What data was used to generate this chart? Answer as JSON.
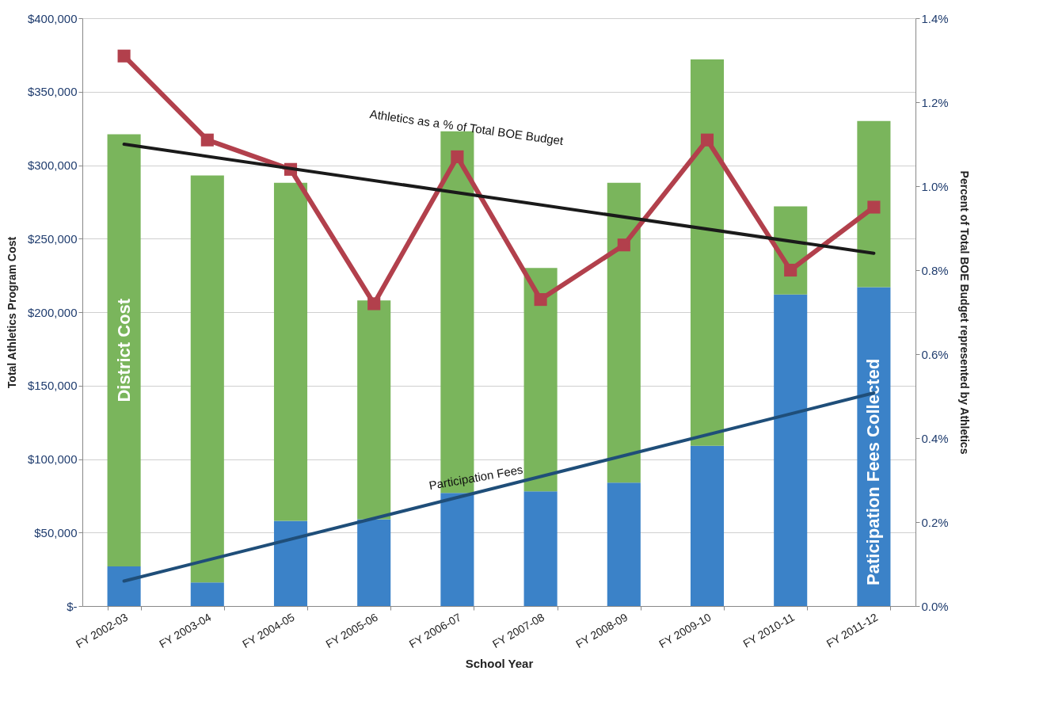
{
  "chart_data": {
    "type": "bar",
    "xlabel": "School Year",
    "ylabel": "Total Athletics Program Cost",
    "y2label": "Percent of Total BOE Budget represented by Athletics",
    "categories": [
      "FY 2002-03",
      "FY 2003-04",
      "FY 2004-05",
      "FY 2005-06",
      "FY 2006-07",
      "FY 2007-08",
      "FY 2008-09",
      "FY 2009-10",
      "FY 2010-11",
      "FY 2011-12"
    ],
    "stacked": true,
    "grid": "y",
    "legend": false,
    "series": [
      {
        "name": "Paticipation Fees Collected",
        "color": "#3b82c8",
        "values": [
          27000,
          16000,
          58000,
          59000,
          77000,
          78000,
          84000,
          109000,
          212000,
          217000
        ]
      },
      {
        "name": "District Cost",
        "color": "#7ab55c",
        "values": [
          294000,
          277000,
          230000,
          149000,
          246000,
          152000,
          204000,
          263000,
          60000,
          113000
        ]
      },
      {
        "type": "line",
        "axis": "y2",
        "color": "#b2404c",
        "marker": "square",
        "line_style": "solid",
        "values": [
          1.31,
          1.11,
          1.04,
          0.72,
          1.07,
          0.73,
          0.86,
          1.11,
          0.8,
          0.95
        ]
      },
      {
        "type": "line",
        "axis": "y2",
        "color": "#1a1a1a",
        "marker": "none",
        "line_style": "solid",
        "x": [
          "FY 2002-03",
          "FY 2011-12"
        ],
        "values": [
          1.1,
          0.84
        ]
      },
      {
        "type": "line",
        "color": "#1f4e79",
        "marker": "none",
        "line_style": "solid",
        "x": [
          "FY 2002-03",
          "FY 2011-12"
        ],
        "values": [
          17000,
          145000
        ]
      }
    ],
    "ylim": [
      0,
      400000
    ],
    "yticks": [
      {
        "value": 0,
        "label": "$-"
      },
      {
        "value": 50000,
        "label": "$50,000"
      },
      {
        "value": 100000,
        "label": "$100,000"
      },
      {
        "value": 150000,
        "label": "$150,000"
      },
      {
        "value": 200000,
        "label": "$200,000"
      },
      {
        "value": 250000,
        "label": "$250,000"
      },
      {
        "value": 300000,
        "label": "$300,000"
      },
      {
        "value": 350000,
        "label": "$350,000"
      },
      {
        "value": 400000,
        "label": "$400,000"
      }
    ],
    "y2lim": [
      0,
      1.4
    ],
    "y2ticks": [
      {
        "value": 0,
        "label": "0.0%"
      },
      {
        "value": 0.2,
        "label": "0.2%"
      },
      {
        "value": 0.4,
        "label": "0.4%"
      },
      {
        "value": 0.6,
        "label": "0.6%"
      },
      {
        "value": 0.8,
        "label": "0.8%"
      },
      {
        "value": 1.0,
        "label": "1.0%"
      },
      {
        "value": 1.2,
        "label": "1.2%"
      },
      {
        "value": 1.4,
        "label": "1.4%"
      }
    ],
    "annotations": [
      "Athletics as a % of Total BOE Budget",
      "Participation Fees"
    ]
  }
}
